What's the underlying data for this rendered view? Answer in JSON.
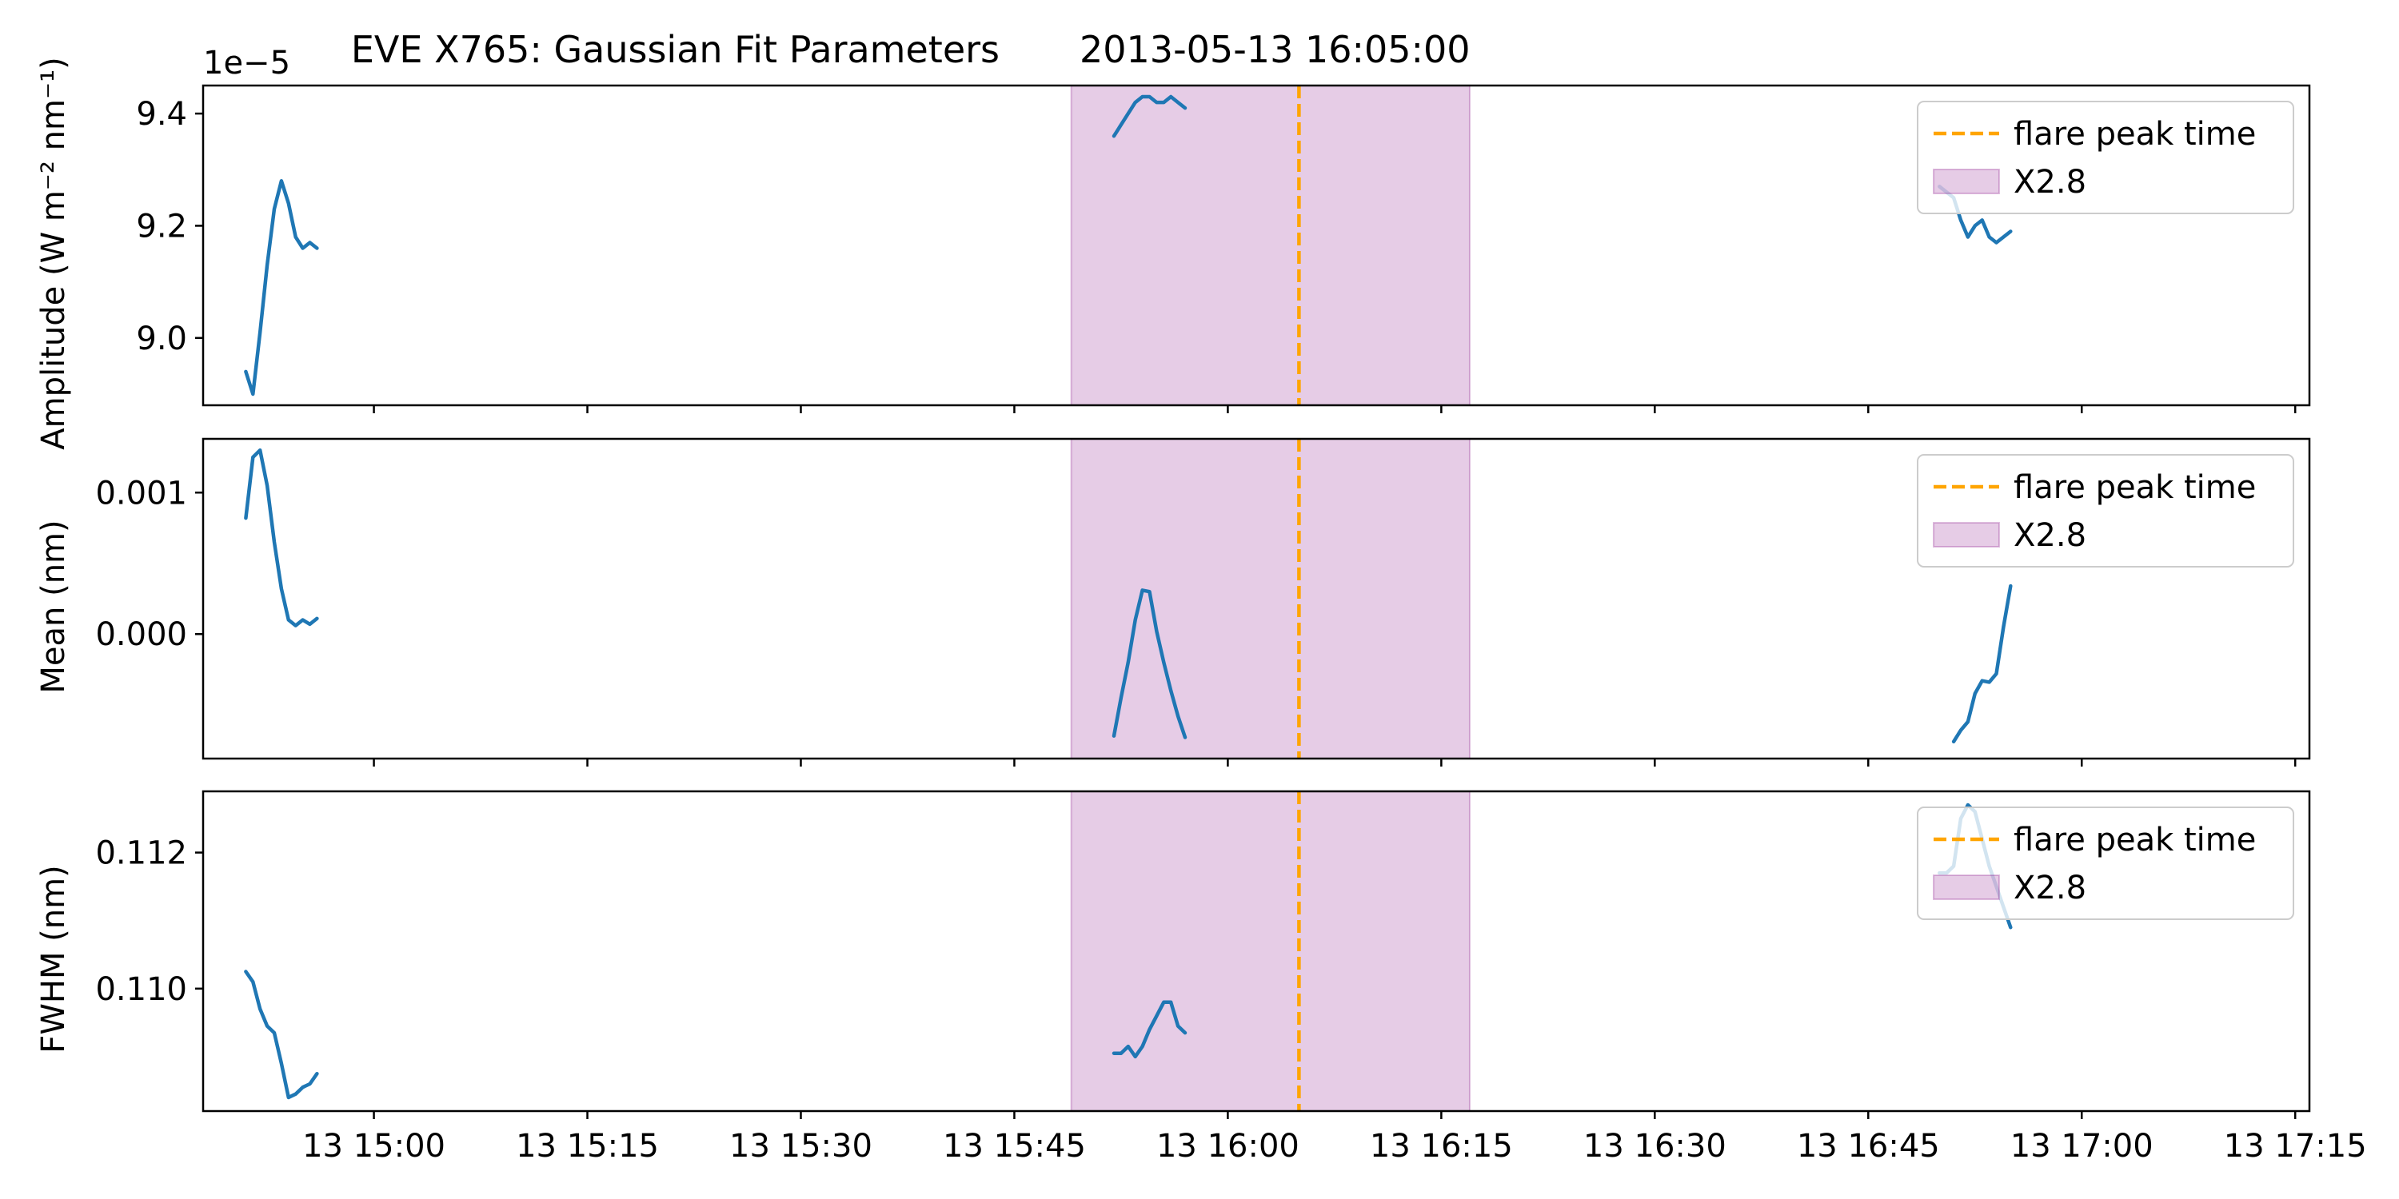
{
  "chart_data": {
    "type": "line",
    "title": "EVE X765: Gaussian Fit Parameters",
    "title_time": "2013-05-13 16:05:00",
    "x_ticks": [
      "13 15:00",
      "13 15:15",
      "13 15:30",
      "13 15:45",
      "13 16:00",
      "13 16:15",
      "13 16:30",
      "13 16:45",
      "13 17:00",
      "13 17:15"
    ],
    "x_tick_minutes": [
      900,
      915,
      930,
      945,
      960,
      975,
      990,
      1005,
      1020,
      1035
    ],
    "xlim_minutes": [
      888,
      1036
    ],
    "flare_peak_minute": 965,
    "flare_window_minutes": [
      949,
      977
    ],
    "colors": {
      "series": "#1f77b4",
      "peak_line": "#ffa500",
      "band": "#800080"
    },
    "legend": {
      "position": "upper right",
      "items": [
        "flare peak time",
        "X2.8"
      ]
    },
    "panels": [
      {
        "ylabel": "Amplitude (W m⁻² nm⁻¹)",
        "offset_text": "1e−5",
        "ylim": [
          8.88,
          9.45
        ],
        "yticks": [
          9.0,
          9.2,
          9.4
        ],
        "ytick_labels": [
          "9.0",
          "9.2",
          "9.4"
        ],
        "segments": [
          {
            "x": [
              891,
              891.5,
              892,
              892.5,
              893,
              893.5,
              894,
              894.5,
              895,
              895.5,
              896
            ],
            "y": [
              8.94,
              8.9,
              9.01,
              9.13,
              9.23,
              9.28,
              9.24,
              9.18,
              9.16,
              9.17,
              9.16
            ]
          },
          {
            "x": [
              952,
              952.5,
              953,
              953.5,
              954,
              954.5,
              955,
              955.5,
              956,
              956.5,
              957
            ],
            "y": [
              9.36,
              9.38,
              9.4,
              9.42,
              9.43,
              9.43,
              9.42,
              9.42,
              9.43,
              9.42,
              9.41
            ]
          },
          {
            "x": [
              1010,
              1011,
              1011.5,
              1012,
              1012.5,
              1013,
              1013.5,
              1014,
              1014.5,
              1015
            ],
            "y": [
              9.27,
              9.25,
              9.21,
              9.18,
              9.2,
              9.21,
              9.18,
              9.17,
              9.18,
              9.19
            ]
          }
        ]
      },
      {
        "ylabel": "Mean (nm)",
        "ylim": [
          -0.00088,
          0.00138
        ],
        "yticks": [
          0.0,
          0.001
        ],
        "ytick_labels": [
          "0.000",
          "0.001"
        ],
        "segments": [
          {
            "x": [
              891,
              891.5,
              892,
              892.5,
              893,
              893.5,
              894,
              894.5,
              895,
              895.5,
              896
            ],
            "y": [
              0.00082,
              0.00125,
              0.0013,
              0.00105,
              0.00065,
              0.00032,
              0.0001,
              6e-05,
              0.0001,
              7e-05,
              0.00011
            ]
          },
          {
            "x": [
              952,
              952.5,
              953,
              953.5,
              954,
              954.5,
              955,
              955.5,
              956,
              956.5,
              957
            ],
            "y": [
              -0.00072,
              -0.00045,
              -0.0002,
              0.0001,
              0.00031,
              0.0003,
              2e-05,
              -0.0002,
              -0.0004,
              -0.00058,
              -0.00073
            ]
          },
          {
            "x": [
              1011,
              1011.5,
              1012,
              1012.5,
              1013,
              1013.5,
              1014,
              1014.5,
              1015
            ],
            "y": [
              -0.00076,
              -0.00068,
              -0.00062,
              -0.00042,
              -0.00033,
              -0.00034,
              -0.00028,
              5e-05,
              0.00034
            ]
          }
        ]
      },
      {
        "ylabel": "FWHM (nm)",
        "ylim": [
          0.1082,
          0.1129
        ],
        "yticks": [
          0.11,
          0.112
        ],
        "ytick_labels": [
          "0.110",
          "0.112"
        ],
        "segments": [
          {
            "x": [
              891,
              891.5,
              892,
              892.5,
              893,
              893.5,
              894,
              894.5,
              895,
              895.5,
              896
            ],
            "y": [
              0.11025,
              0.1101,
              0.1097,
              0.10945,
              0.10935,
              0.1089,
              0.1084,
              0.10845,
              0.10855,
              0.1086,
              0.10875
            ]
          },
          {
            "x": [
              952,
              952.5,
              953,
              953.5,
              954,
              954.5,
              955,
              955.5,
              956,
              956.5,
              957
            ],
            "y": [
              0.10905,
              0.10905,
              0.10915,
              0.109,
              0.10915,
              0.1094,
              0.1096,
              0.1098,
              0.1098,
              0.10945,
              0.10935
            ]
          },
          {
            "x": [
              1010,
              1010.5,
              1011,
              1011.5,
              1012,
              1012.5,
              1013,
              1013.5,
              1014,
              1014.5,
              1015
            ],
            "y": [
              0.1117,
              0.1117,
              0.1118,
              0.1125,
              0.1127,
              0.1126,
              0.1122,
              0.1118,
              0.1115,
              0.1112,
              0.1109
            ]
          }
        ]
      }
    ]
  }
}
